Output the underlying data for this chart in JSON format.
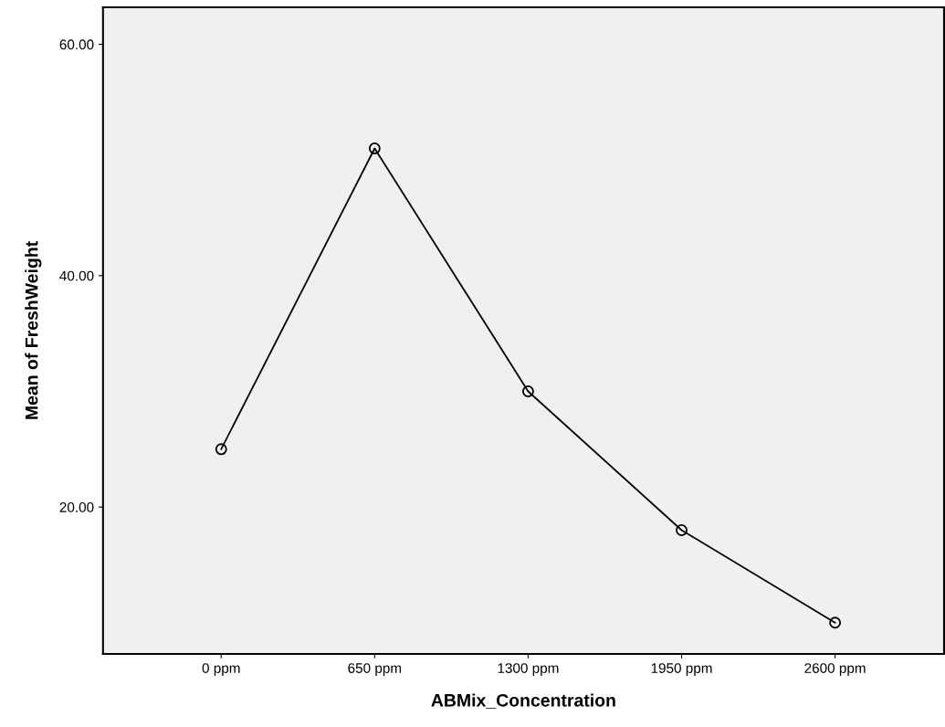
{
  "chart_data": {
    "type": "line",
    "xlabel": "ABMix_Concentration",
    "ylabel": "Mean of FreshWeight",
    "categories": [
      "0 ppm",
      "650 ppm",
      "1300 ppm",
      "1950 ppm",
      "2600 ppm"
    ],
    "series": [
      {
        "color": "#000000",
        "values": [
          25,
          51,
          30,
          18,
          10
        ]
      }
    ],
    "ylim": [
      7.3,
      63.2
    ],
    "yticks": [
      {
        "value": 20,
        "label": "20.00"
      },
      {
        "value": 40,
        "label": "40.00"
      },
      {
        "value": 60,
        "label": "60.00"
      }
    ],
    "marker": "circle",
    "line_style": "solid",
    "grid": false,
    "legend": false
  }
}
